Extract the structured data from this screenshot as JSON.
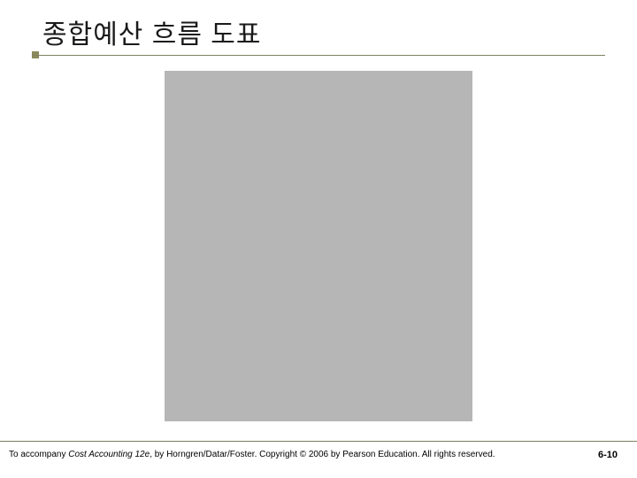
{
  "slide": {
    "title": "종합예산 흐름 도표",
    "title_color": "#1a1a1a",
    "title_fontsize": 30,
    "underline_color": "#808060",
    "marker_color": "#8a8a5c",
    "content_placeholder_bg": "#b6b6b6",
    "background": "#ffffff"
  },
  "footer": {
    "prefix": "To accompany ",
    "book_title": "Cost Accounting 12e",
    "suffix": ", by Horngren/Datar/Foster. Copyright © 2006 by Pearson Education. All rights reserved.",
    "page_number": "6-10",
    "text_color": "#000000",
    "line_color": "#808060"
  }
}
